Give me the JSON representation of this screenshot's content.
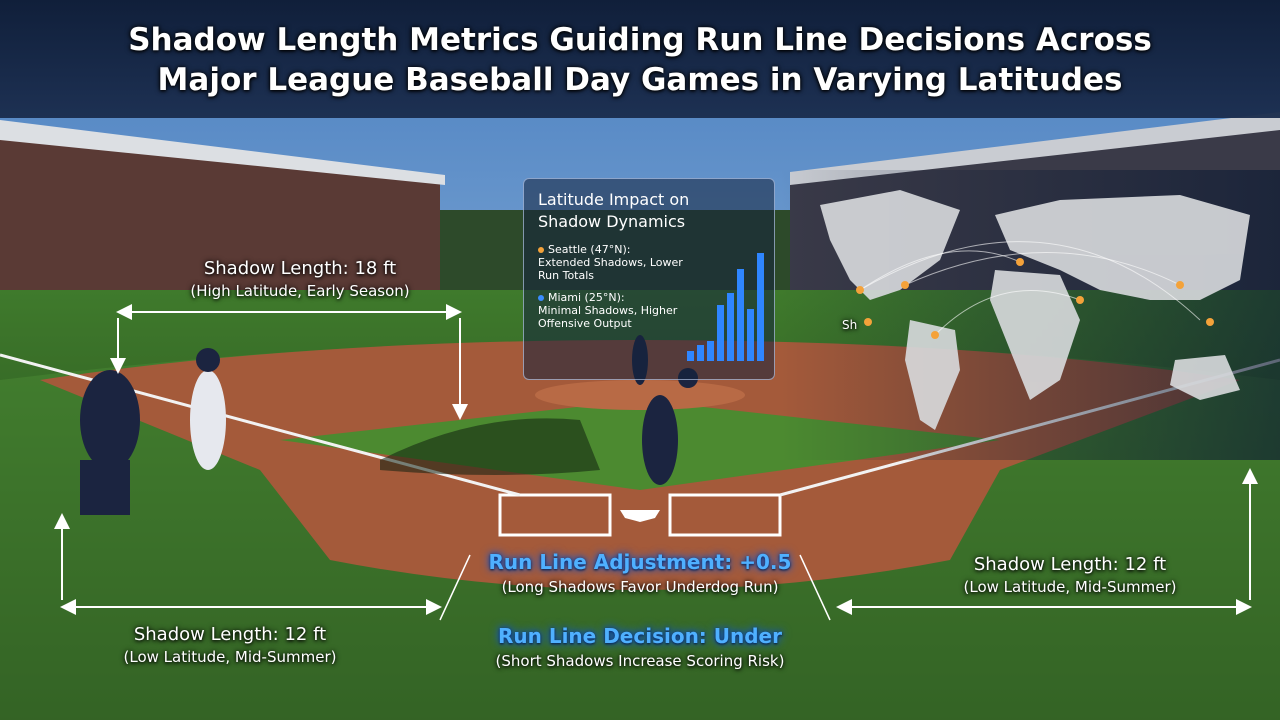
{
  "title": {
    "lines": [
      "Shadow Length Metrics Guiding Run Line Decisions Across",
      "Major League Baseball Day Games in Varying Latitudes"
    ]
  },
  "annotations": {
    "high_latitude": {
      "heading": "Shadow Length: 18 ft",
      "detail": "(High Latitude, Early Season)"
    },
    "low_latitude_left": {
      "heading": "Shadow Length: 12 ft",
      "detail": "(Low Latitude, Mid-Summer)"
    },
    "low_latitude_right": {
      "heading": "Shadow Length: 12 ft",
      "detail": "(Low Latitude, Mid-Summer)"
    },
    "run_line_adjustment": {
      "heading": "Run Line Adjustment: +0.5",
      "detail": "(Long Shadows Favor Underdog Run)"
    },
    "run_line_decision": {
      "heading": "Run Line Decision: Under",
      "detail": "(Short Shadows Increase Scoring Risk)"
    }
  },
  "panel": {
    "title": "Latitude Impact on Shadow Dynamics",
    "items": [
      {
        "city": "Seattle (47°N):",
        "note": "Extended Shadows, Lower Run Totals"
      },
      {
        "city": "Miami (25°N):",
        "note": "Minimal Shadows, Higher Offensive Output"
      }
    ],
    "bars": [
      0.5,
      0.8,
      1,
      2.8,
      3.4,
      4.6,
      2.6,
      5.4
    ]
  },
  "map": {
    "label": "Sh"
  }
}
